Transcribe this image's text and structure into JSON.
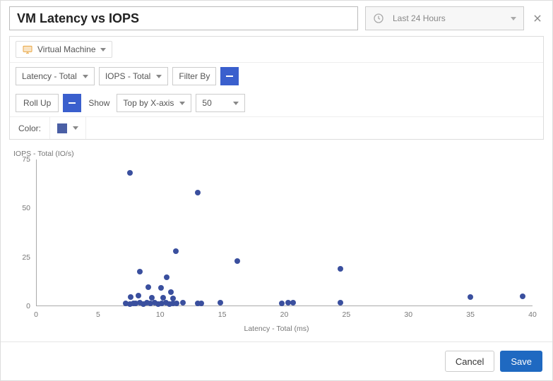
{
  "header": {
    "title": "VM Latency vs IOPS",
    "time_range": "Last 24 Hours"
  },
  "config": {
    "entity_label": "Virtual Machine",
    "metric_x": "Latency - Total",
    "metric_y": "IOPS - Total",
    "filter_by_label": "Filter By",
    "rollup_label": "Roll Up",
    "show_label": "Show",
    "show_mode": "Top by X-axis",
    "show_count": "50",
    "color_label": "Color:",
    "series_color": "#4a5fa5"
  },
  "chart": {
    "type": "scatter",
    "x_axis_label": "Latency - Total (ms)",
    "y_axis_label": "IOPS - Total (IO/s)",
    "xlim": [
      0,
      40
    ],
    "ylim": [
      0,
      75
    ],
    "xtick_step": 5,
    "ytick_step": 25,
    "xticks": [
      0,
      5,
      10,
      15,
      20,
      25,
      30,
      35,
      40
    ],
    "yticks": [
      0,
      25,
      50,
      75
    ],
    "axis_color": "#aaaaaa",
    "tick_font_size": 10.5,
    "label_font_size": 10.5,
    "tick_color": "#777777",
    "background_color": "#ffffff",
    "marker_color": "#3a4f9e",
    "marker_size": 8,
    "points": [
      [
        7.5,
        68
      ],
      [
        13.0,
        58
      ],
      [
        11.2,
        28
      ],
      [
        16.2,
        23
      ],
      [
        8.3,
        17.5
      ],
      [
        10.5,
        14.5
      ],
      [
        24.5,
        19
      ],
      [
        9.0,
        9.5
      ],
      [
        10.0,
        9.0
      ],
      [
        10.8,
        7.0
      ],
      [
        7.6,
        4.5
      ],
      [
        8.2,
        5.0
      ],
      [
        9.3,
        4.0
      ],
      [
        10.2,
        4.0
      ],
      [
        11.0,
        3.5
      ],
      [
        35.0,
        4.5
      ],
      [
        39.2,
        4.8
      ],
      [
        7.2,
        1.0
      ],
      [
        7.5,
        0.8
      ],
      [
        7.8,
        1.2
      ],
      [
        8.0,
        1.0
      ],
      [
        8.3,
        1.5
      ],
      [
        8.6,
        0.8
      ],
      [
        8.9,
        1.3
      ],
      [
        9.2,
        1.0
      ],
      [
        9.5,
        1.4
      ],
      [
        9.8,
        0.9
      ],
      [
        10.1,
        1.1
      ],
      [
        10.4,
        1.5
      ],
      [
        10.7,
        0.8
      ],
      [
        11.0,
        1.2
      ],
      [
        11.3,
        1.0
      ],
      [
        11.8,
        1.3
      ],
      [
        13.0,
        1.0
      ],
      [
        13.3,
        1.2
      ],
      [
        14.8,
        1.5
      ],
      [
        19.8,
        1.0
      ],
      [
        20.3,
        1.3
      ],
      [
        20.7,
        1.5
      ],
      [
        24.5,
        1.5
      ]
    ]
  },
  "footer": {
    "cancel": "Cancel",
    "save": "Save"
  },
  "colors": {
    "primary_button": "#1f69c1",
    "accent_square": "#3a5fcd",
    "vm_icon": "#e8a23a"
  }
}
